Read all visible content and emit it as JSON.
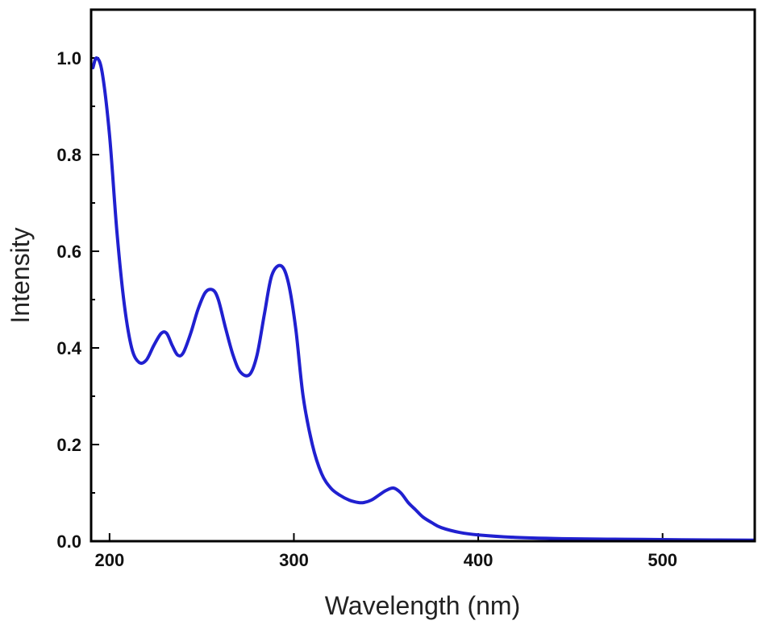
{
  "chart_data": {
    "type": "line",
    "title": "",
    "xlabel": "Wavelength (nm)",
    "ylabel": "Intensity",
    "xlim": [
      190,
      550
    ],
    "ylim": [
      0.0,
      1.1
    ],
    "xticks": [
      200,
      300,
      400,
      500
    ],
    "xtick_labels": [
      "200",
      "300",
      "400",
      "500"
    ],
    "yticks": [
      0.0,
      0.2,
      0.4,
      0.6,
      0.8,
      1.0
    ],
    "ytick_labels": [
      "0.0",
      "0.2",
      "0.4",
      "0.6",
      "0.8",
      "1.0"
    ],
    "grid": false,
    "legend": "none",
    "series": [
      {
        "color": "#2020d0",
        "x": [
          191,
          193,
          196,
          200,
          204,
          208,
          212,
          216,
          220,
          224,
          228,
          231,
          234,
          237,
          240,
          244,
          248,
          252,
          256,
          259,
          263,
          267,
          271,
          276,
          280,
          284,
          288,
          293,
          297,
          301,
          305,
          310,
          315,
          320,
          325,
          330,
          335,
          338,
          342,
          346,
          350,
          354,
          358,
          362,
          366,
          370,
          375,
          380,
          390,
          400,
          420,
          450,
          480,
          510,
          550
        ],
        "y": [
          0.98,
          1.0,
          0.97,
          0.84,
          0.64,
          0.49,
          0.4,
          0.37,
          0.375,
          0.405,
          0.43,
          0.43,
          0.405,
          0.385,
          0.39,
          0.43,
          0.48,
          0.515,
          0.52,
          0.5,
          0.44,
          0.385,
          0.35,
          0.345,
          0.385,
          0.47,
          0.55,
          0.57,
          0.535,
          0.44,
          0.3,
          0.2,
          0.14,
          0.11,
          0.095,
          0.085,
          0.08,
          0.08,
          0.085,
          0.095,
          0.105,
          0.11,
          0.1,
          0.08,
          0.065,
          0.05,
          0.038,
          0.028,
          0.018,
          0.013,
          0.008,
          0.005,
          0.004,
          0.003,
          0.002
        ]
      }
    ]
  }
}
